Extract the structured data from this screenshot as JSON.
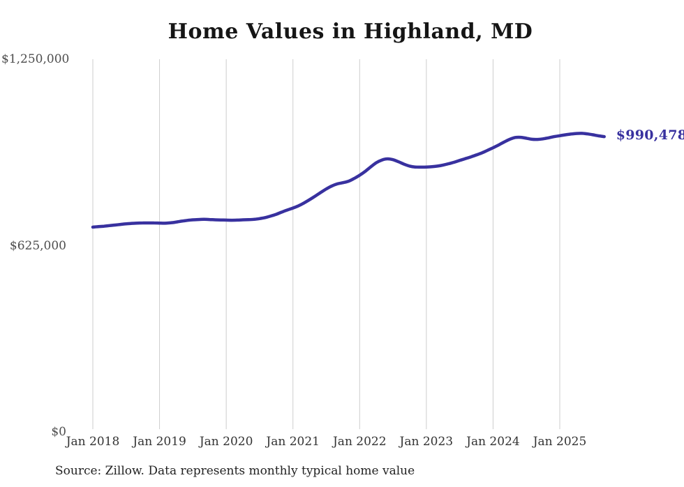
{
  "chart_data": {
    "type": "line",
    "title": "Home Values in Highland, MD",
    "source_note": "Source: Zillow. Data represents monthly typical home value",
    "end_label": "$990,478",
    "end_value": 990478,
    "line_color": "#38319f",
    "grid_color": "#cdcdcd",
    "grid": "vertical-only",
    "legend_position": "none",
    "ylim": [
      0,
      1250000
    ],
    "y_ticks": [
      {
        "label": "$1,250,000",
        "value": 1250000
      },
      {
        "label": "$625,000",
        "value": 625000
      },
      {
        "label": "$0",
        "value": 0
      }
    ],
    "x_ticks": [
      "Jan 2018",
      "Jan 2019",
      "Jan 2020",
      "Jan 2021",
      "Jan 2022",
      "Jan 2023",
      "Jan 2024",
      "Jan 2025"
    ],
    "series": [
      {
        "name": "Monthly typical home value",
        "start": "2018-01",
        "frequency": "monthly",
        "values": [
          687000,
          688500,
          690000,
          692000,
          694000,
          696000,
          698000,
          699500,
          700500,
          701000,
          701000,
          701000,
          700500,
          700000,
          701500,
          704000,
          707000,
          709500,
          711500,
          712500,
          713000,
          712500,
          711500,
          711000,
          710500,
          710000,
          710500,
          711500,
          712000,
          713000,
          715500,
          719000,
          724000,
          730000,
          737500,
          744500,
          751000,
          758500,
          768000,
          779000,
          791000,
          803000,
          815000,
          825000,
          832000,
          836000,
          841000,
          850000,
          861000,
          874000,
          889000,
          903000,
          912000,
          916000,
          913000,
          906000,
          898000,
          891500,
          888500,
          888000,
          888500,
          889500,
          891500,
          895000,
          899500,
          904500,
          910500,
          916500,
          922500,
          929000,
          936000,
          944500,
          953000,
          962500,
          972500,
          981500,
          987500,
          988000,
          985000,
          981500,
          981000,
          983000,
          986500,
          990500,
          993500,
          996500,
          999000,
          1001000,
          1001500,
          999500,
          996500,
          993000,
          990478
        ]
      }
    ]
  }
}
